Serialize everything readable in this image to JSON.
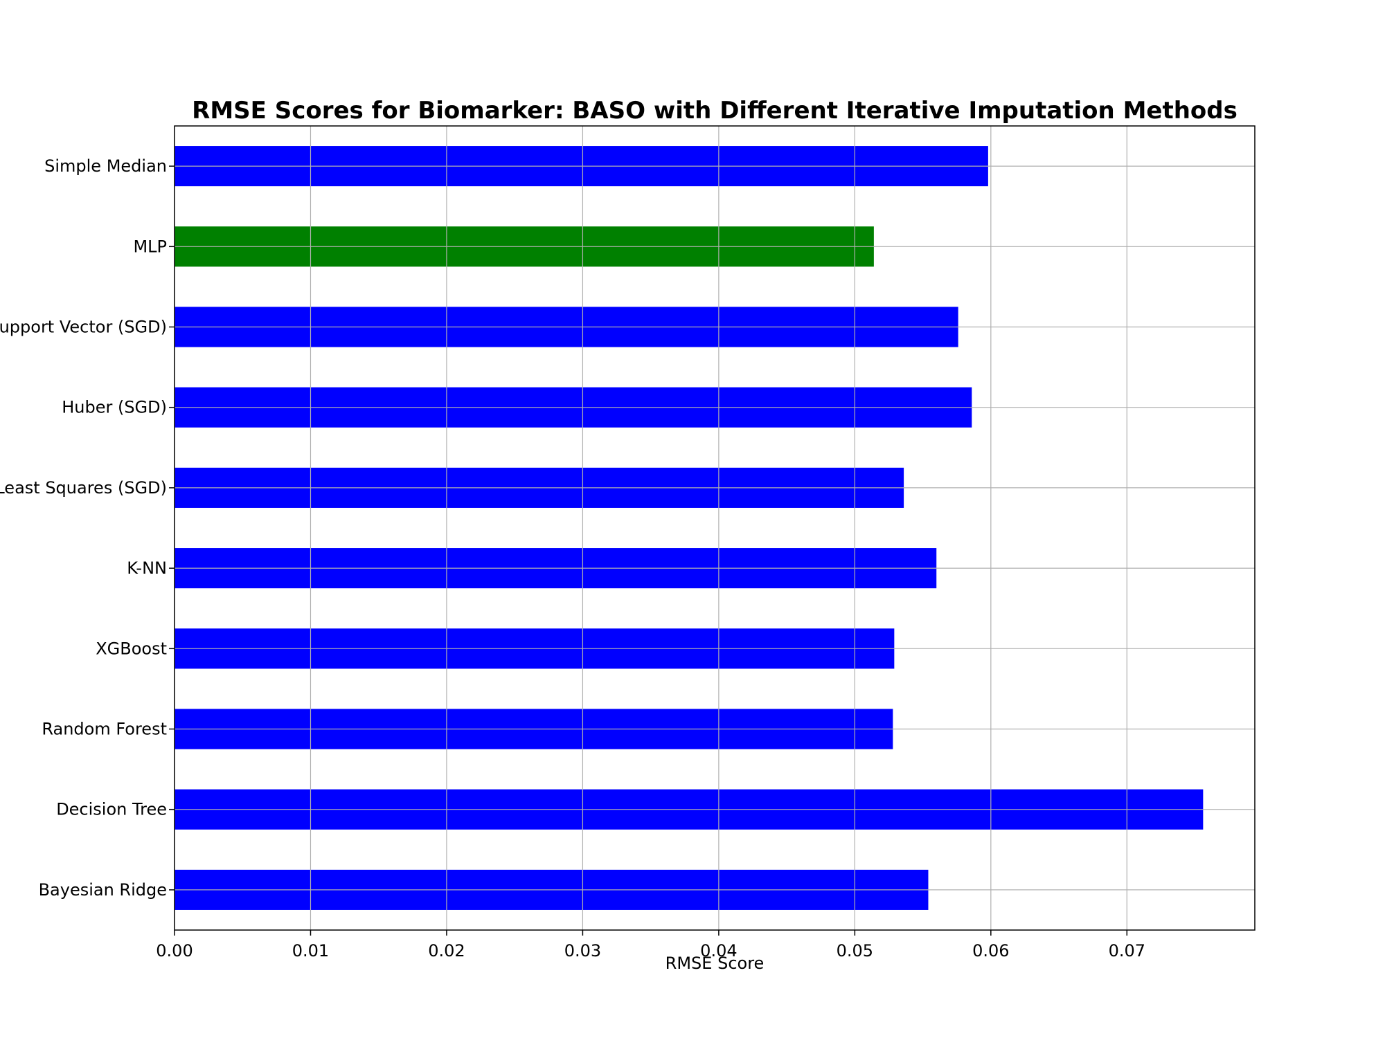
{
  "chart_data": {
    "type": "bar",
    "orientation": "horizontal",
    "title": "RMSE Scores for Biomarker: BASO with Different Iterative Imputation Methods",
    "xlabel": "RMSE Score",
    "ylabel": "",
    "categories": [
      "Bayesian Ridge",
      "Decision Tree",
      "Random Forest",
      "XGBoost",
      "K-NN",
      "Least Squares (SGD)",
      "Huber (SGD)",
      "Support Vector (SGD)",
      "MLP",
      "Simple Median"
    ],
    "values": [
      0.0554,
      0.0756,
      0.0528,
      0.0529,
      0.056,
      0.0536,
      0.0586,
      0.0576,
      0.0514,
      0.0598
    ],
    "bar_colors": [
      "#0000ff",
      "#0000ff",
      "#0000ff",
      "#0000ff",
      "#0000ff",
      "#0000ff",
      "#0000ff",
      "#0000ff",
      "#008000",
      "#0000ff"
    ],
    "xlim": [
      0,
      0.0794
    ],
    "xticks": [
      0.0,
      0.01,
      0.02,
      0.03,
      0.04,
      0.05,
      0.06,
      0.07
    ],
    "xtick_labels": [
      "0.00",
      "0.01",
      "0.02",
      "0.03",
      "0.04",
      "0.05",
      "0.06",
      "0.07"
    ],
    "grid": true,
    "legend": "none"
  }
}
